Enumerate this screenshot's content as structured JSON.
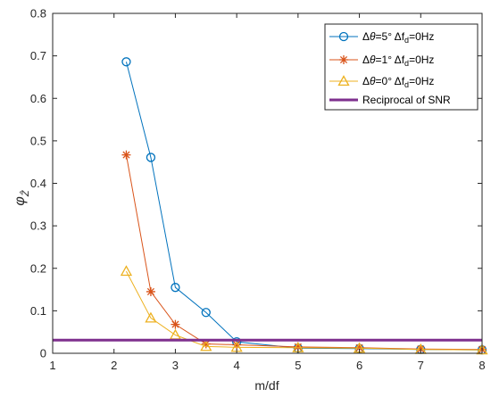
{
  "chart_data": {
    "type": "line",
    "title": "",
    "xlabel": "m/df",
    "ylabel_symbol": "φ",
    "ylabel_subscript": "Ẑ",
    "xlim": [
      1,
      8
    ],
    "ylim": [
      0,
      0.8
    ],
    "xticks": [
      1,
      2,
      3,
      4,
      5,
      6,
      7,
      8
    ],
    "yticks": [
      0,
      0.1,
      0.2,
      0.3,
      0.4,
      0.5,
      0.6,
      0.7,
      0.8
    ],
    "ytick_labels": [
      "0",
      "0.1",
      "0.2",
      "0.3",
      "0.4",
      "0.5",
      "0.6",
      "0.7",
      "0.8"
    ],
    "grid": false,
    "legend_placement": "top-right",
    "series": [
      {
        "name": "Δθ=5° Δf_d=0Hz",
        "legend": {
          "a": "Δ",
          "b": "θ",
          "c": "=5° Δf",
          "d": "d",
          "e": "=0Hz"
        },
        "color": "#0072BD",
        "marker": "circle",
        "x": [
          2.2,
          2.6,
          3,
          3.5,
          4,
          5,
          6,
          7,
          8
        ],
        "y": [
          0.686,
          0.461,
          0.155,
          0.096,
          0.027,
          0.012,
          0.011,
          0.009,
          0.008
        ]
      },
      {
        "name": "Δθ=1° Δf_d=0Hz",
        "legend": {
          "a": "Δ",
          "b": "θ",
          "c": "=1° Δf",
          "d": "d",
          "e": "=0Hz"
        },
        "color": "#D95319",
        "marker": "star",
        "x": [
          2.2,
          2.6,
          3,
          3.5,
          4,
          5,
          6,
          7,
          8
        ],
        "y": [
          0.467,
          0.145,
          0.068,
          0.022,
          0.02,
          0.015,
          0.013,
          0.01,
          0.009
        ]
      },
      {
        "name": "Δθ=0° Δf_d=0Hz",
        "legend": {
          "a": "Δ",
          "b": "θ",
          "c": "=0° Δf",
          "d": "d",
          "e": "=0Hz"
        },
        "color": "#EDB120",
        "marker": "triangle",
        "x": [
          2.2,
          2.6,
          3,
          3.5,
          4,
          5,
          6,
          7,
          8
        ],
        "y": [
          0.193,
          0.083,
          0.043,
          0.016,
          0.014,
          0.013,
          0.012,
          0.009,
          0.008
        ]
      },
      {
        "name": "Reciprocal of SNR",
        "color": "#7E2F8E",
        "marker": "none",
        "x": [
          1,
          8
        ],
        "y": [
          0.031,
          0.031
        ]
      }
    ]
  }
}
